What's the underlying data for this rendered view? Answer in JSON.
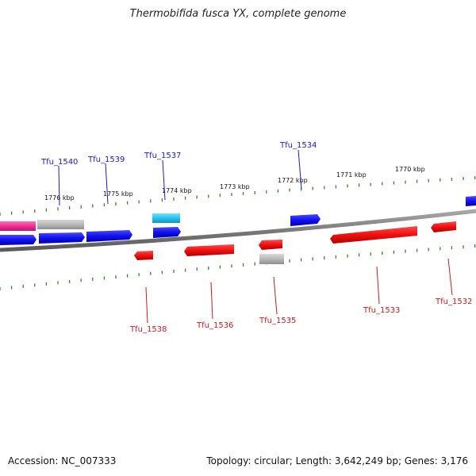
{
  "title": "Thermobifida fusca YX, complete genome",
  "footer": {
    "accession": "Accession: NC_007333",
    "summary": "Topology: circular; Length: 3,642,249 bp; Genes: 3,176"
  },
  "colors": {
    "tick": "#2e8b22",
    "backbone": "#808080",
    "forward_label": "#1a1acc",
    "reverse_label": "#cc1a1a"
  },
  "scale_labels": [
    "1776 kbp",
    "1775 kbp",
    "1774 kbp",
    "1773 kbp",
    "1772 kbp",
    "1771 kbp",
    "1770 kbp"
  ],
  "labels_forward": [
    "Tfu_1540",
    "Tfu_1539",
    "Tfu_1537",
    "Tfu_1534"
  ],
  "labels_reverse": [
    "Tfu_1538",
    "Tfu_1536",
    "Tfu_1535",
    "Tfu_1533",
    "Tfu_1532"
  ]
}
